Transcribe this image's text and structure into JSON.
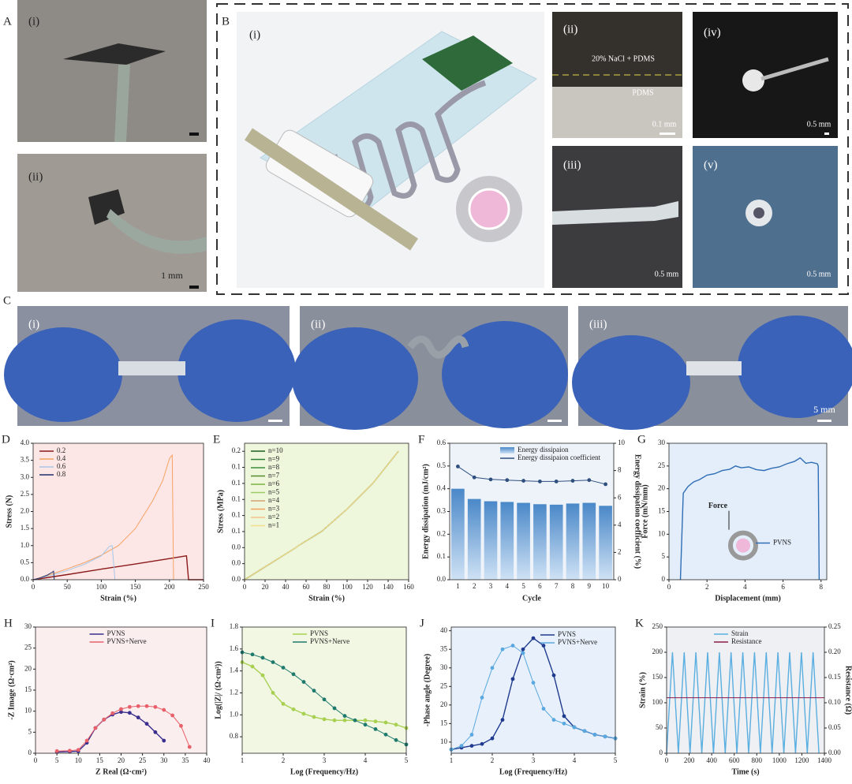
{
  "panels": {
    "A": "A",
    "B": "B",
    "C": "C"
  },
  "photos": {
    "A_i": "(i)",
    "A_ii": "(ii)",
    "A_scale": "1 mm",
    "B_i": "(i)",
    "B_ii": "(ii)",
    "B_ii_top": "20% NaCl + PDMS",
    "B_ii_bottom": "PDMS",
    "B_ii_scale": "0.1 mm",
    "B_iii": "(iii)",
    "B_iii_scale": "0.5 mm",
    "B_iv": "(iv)",
    "B_iv_scale": "0.5 mm",
    "B_v": "(v)",
    "B_v_scale": "0.5 mm",
    "C_i": "(i)",
    "C_ii": "(ii)",
    "C_iii": "(iii)",
    "C_scale": "5 mm"
  },
  "chart_data": [
    {
      "type": "line",
      "panel": "D",
      "xlabel": "Strain (%)",
      "ylabel": "Stress (N)",
      "background": "#fde6e6",
      "legend": "upper left",
      "xlim": [
        0,
        250
      ],
      "xticks": [
        0,
        50,
        100,
        150,
        200,
        250
      ],
      "ylim": [
        0,
        4
      ],
      "yticks": [
        {
          "value": 0,
          "label": "0.0"
        },
        0.5,
        {
          "value": 1,
          "label": "1.0"
        },
        1.5,
        {
          "value": 2,
          "label": "2.0"
        },
        2.5,
        {
          "value": 3,
          "label": "3.0"
        },
        3.5,
        {
          "value": 4,
          "label": "4.0"
        }
      ],
      "series": [
        {
          "name": "0.2",
          "color": "#8b1a1a",
          "x": [
            0,
            50,
            100,
            150,
            200,
            225,
            228,
            250
          ],
          "values": [
            0,
            0.15,
            0.31,
            0.46,
            0.62,
            0.7,
            0,
            0
          ]
        },
        {
          "name": "0.4",
          "color": "#f4a261",
          "x": [
            0,
            25,
            50,
            75,
            100,
            125,
            150,
            175,
            190,
            200,
            204,
            206
          ],
          "values": [
            0,
            0.15,
            0.32,
            0.5,
            0.72,
            1.0,
            1.5,
            2.3,
            2.9,
            3.55,
            3.65,
            0
          ]
        },
        {
          "name": "0.6",
          "color": "#a7c7e7",
          "x": [
            0,
            25,
            50,
            75,
            100,
            112,
            116,
            120
          ],
          "values": [
            0,
            0.12,
            0.27,
            0.45,
            0.7,
            0.98,
            1.0,
            0
          ]
        },
        {
          "name": "0.8",
          "color": "#1f2f6b",
          "x": [
            0,
            10,
            20,
            28,
            30,
            31
          ],
          "values": [
            0,
            0.05,
            0.13,
            0.22,
            0.25,
            0
          ]
        }
      ]
    },
    {
      "type": "line",
      "panel": "E",
      "xlabel": "Strain (%)",
      "ylabel": "Stress (MPa)",
      "background": "#eef6dc",
      "legend": "upper left",
      "xlim": [
        0,
        160
      ],
      "xticks": [
        0,
        20,
        40,
        60,
        80,
        100,
        120,
        140,
        160
      ],
      "ylim": [
        0,
        0.17
      ],
      "yticks": [
        {
          "value": 0,
          "label": "0.0"
        },
        {
          "value": 0.02,
          "label": "0.0"
        },
        {
          "value": 0.04,
          "label": "0.0"
        },
        {
          "value": 0.06,
          "label": "0.1"
        },
        {
          "value": 0.08,
          "label": "0.1"
        },
        {
          "value": 0.1,
          "label": "0.1"
        },
        {
          "value": 0.12,
          "label": "0.1"
        },
        {
          "value": 0.14,
          "label": "0.1"
        },
        {
          "value": 0.16,
          "label": "0.2"
        }
      ],
      "x": [
        0,
        25,
        50,
        52,
        75,
        100,
        125,
        150
      ],
      "series": [
        {
          "name": "n=10",
          "color": "#1b5e20",
          "values": [
            0,
            0.02,
            0.04,
            0.042,
            0.06,
            0.088,
            0.12,
            0.16
          ]
        },
        {
          "name": "n=9",
          "color": "#2e7d32",
          "values": [
            0,
            0.02,
            0.04,
            0.042,
            0.06,
            0.088,
            0.12,
            0.16
          ]
        },
        {
          "name": "n=8",
          "color": "#388e3c",
          "values": [
            0,
            0.02,
            0.04,
            0.042,
            0.06,
            0.088,
            0.12,
            0.16
          ]
        },
        {
          "name": "n=7",
          "color": "#558b2f",
          "values": [
            0,
            0.02,
            0.04,
            0.042,
            0.06,
            0.088,
            0.12,
            0.16
          ]
        },
        {
          "name": "n=6",
          "color": "#7cb342",
          "values": [
            0,
            0.02,
            0.04,
            0.042,
            0.06,
            0.088,
            0.12,
            0.16
          ]
        },
        {
          "name": "n=5",
          "color": "#9ccc65",
          "values": [
            0,
            0.02,
            0.04,
            0.042,
            0.06,
            0.088,
            0.12,
            0.16
          ]
        },
        {
          "name": "n=4",
          "color": "#d4a373",
          "values": [
            0,
            0.02,
            0.04,
            0.042,
            0.06,
            0.088,
            0.12,
            0.16
          ]
        },
        {
          "name": "n=3",
          "color": "#f4a261",
          "values": [
            0,
            0.02,
            0.04,
            0.042,
            0.06,
            0.088,
            0.12,
            0.16
          ]
        },
        {
          "name": "n=2",
          "color": "#f6c28b",
          "values": [
            0,
            0.02,
            0.04,
            0.042,
            0.06,
            0.088,
            0.12,
            0.16
          ]
        },
        {
          "name": "n=1",
          "color": "#f3e08a",
          "values": [
            0,
            0.02,
            0.04,
            0.042,
            0.06,
            0.088,
            0.12,
            0.16
          ]
        }
      ]
    },
    {
      "type": "bar",
      "panel": "F",
      "xlabel": "Cycle",
      "ylabel": "Energy dissipation (mJ/cm²)",
      "y2label": "Energy dissipation coefficient (%)",
      "background": "#eef3fa",
      "legend": "upper center",
      "markers": true,
      "categories": [
        "1",
        "2",
        "3",
        "4",
        "5",
        "6",
        "7",
        "8",
        "9",
        "10"
      ],
      "ylim": [
        0,
        0.6
      ],
      "yticks": [
        {
          "value": 0,
          "label": "0.0"
        },
        0.1,
        0.2,
        0.3,
        0.4,
        0.5,
        0.6
      ],
      "y2lim": [
        0,
        10
      ],
      "y2ticks": [
        0,
        2,
        4,
        6,
        8,
        10
      ],
      "series": [
        {
          "name": "Energy dissipaion",
          "color": "#5b9bd5",
          "values": [
            0.4,
            0.355,
            0.345,
            0.342,
            0.338,
            0.332,
            0.33,
            0.335,
            0.338,
            0.325
          ]
        },
        {
          "name": "Energy dissipaion coefficient",
          "color": "#2f4f7f",
          "type": "line",
          "axis": "y2",
          "values": [
            8.3,
            7.5,
            7.35,
            7.3,
            7.25,
            7.2,
            7.2,
            7.25,
            7.3,
            7.0
          ]
        }
      ]
    },
    {
      "type": "line",
      "panel": "G",
      "xlabel": "Displacement (mm)",
      "ylabel": "Force (mN/mm)",
      "background": "#e3eefa",
      "legend": "center right",
      "annotation": "Force",
      "xlim": [
        0,
        8.3
      ],
      "xticks": [
        0,
        2,
        4,
        6,
        8
      ],
      "ylim": [
        0,
        30
      ],
      "yticks": [
        0,
        5,
        10,
        15,
        20,
        25,
        30
      ],
      "series": [
        {
          "name": "PVNS",
          "color": "#2f6db5",
          "x": [
            0.6,
            0.75,
            1,
            1.3,
            1.6,
            2,
            2.4,
            2.8,
            3.2,
            3.5,
            3.8,
            4.2,
            4.6,
            5,
            5.4,
            5.8,
            6.2,
            6.6,
            6.9,
            7.2,
            7.5,
            7.8,
            7.85,
            7.9
          ],
          "values": [
            0,
            19,
            20.5,
            21.5,
            22,
            23,
            23.3,
            24,
            24.3,
            25,
            24.6,
            24.8,
            24.2,
            24,
            24.5,
            24.8,
            25.5,
            26,
            26.8,
            25.6,
            25.8,
            25.5,
            25,
            0
          ]
        }
      ]
    },
    {
      "type": "line",
      "panel": "H",
      "xlabel": "Z Real (Ω·cm²)",
      "ylabel": "-Z Image (Ω·cm²)",
      "background": "#fbeeee",
      "legend": "upper center",
      "markers": true,
      "xlim": [
        0,
        40
      ],
      "xticks": [
        0,
        5,
        10,
        15,
        20,
        25,
        30,
        35,
        40
      ],
      "ylim": [
        0,
        30
      ],
      "yticks": [
        0,
        5,
        10,
        15,
        20,
        25,
        30
      ],
      "series": [
        {
          "name": "PVNS",
          "color": "#3a2f8f",
          "x": [
            5,
            8,
            10,
            12,
            14,
            16,
            18,
            20,
            22,
            24,
            26,
            28,
            30
          ],
          "values": [
            0.3,
            0.4,
            0.5,
            2.5,
            6,
            8,
            9.2,
            9.8,
            9.6,
            8.5,
            7,
            5,
            3
          ]
        },
        {
          "name": "PVNS+Nerve",
          "color": "#e8606a",
          "x": [
            5,
            8,
            10,
            12,
            14,
            16,
            18,
            20,
            22,
            24,
            26,
            28,
            30,
            32,
            34,
            36
          ],
          "values": [
            0.5,
            0.6,
            0.8,
            3,
            6,
            8,
            9.5,
            10.5,
            11,
            11.2,
            11.2,
            11,
            10.3,
            9,
            6.5,
            1.5
          ]
        }
      ]
    },
    {
      "type": "line",
      "panel": "I",
      "xlabel": "Log (Frequency/Hz)",
      "ylabel": "Log(|Z|/ (Ω·cm²))",
      "background": "#f1f7e2",
      "legend": "upper center",
      "markers": true,
      "xlim": [
        1,
        5
      ],
      "xticks": [
        1,
        2,
        3,
        4,
        5
      ],
      "ylim": [
        0.65,
        1.8
      ],
      "yticks": [
        0.8,
        {
          "value": 1,
          "label": "1.0"
        },
        1.2,
        1.4,
        1.6,
        1.8
      ],
      "x": [
        1,
        1.25,
        1.5,
        1.75,
        2,
        2.25,
        2.5,
        2.75,
        3,
        3.25,
        3.5,
        3.75,
        4,
        4.25,
        4.5,
        4.75,
        5
      ],
      "series": [
        {
          "name": "PVNS",
          "color": "#a8d050",
          "values": [
            1.48,
            1.44,
            1.36,
            1.2,
            1.1,
            1.05,
            1.01,
            0.98,
            0.96,
            0.95,
            0.95,
            0.95,
            0.95,
            0.94,
            0.93,
            0.91,
            0.88
          ]
        },
        {
          "name": "PVNS+Nerve",
          "color": "#1f7a6e",
          "values": [
            1.57,
            1.55,
            1.52,
            1.48,
            1.43,
            1.37,
            1.3,
            1.22,
            1.14,
            1.06,
            0.99,
            0.95,
            0.91,
            0.87,
            0.82,
            0.77,
            0.73
          ]
        }
      ]
    },
    {
      "type": "line",
      "panel": "J",
      "xlabel": "Log (Frequency/Hz)",
      "ylabel": "-Phase angle (Degree)",
      "background": "#e8f1fb",
      "legend": "upper right",
      "markers": true,
      "xlim": [
        1,
        5
      ],
      "xticks": [
        1,
        2,
        3,
        4,
        5
      ],
      "ylim": [
        7,
        41
      ],
      "yticks": [
        10,
        15,
        20,
        25,
        30,
        35,
        40
      ],
      "x": [
        1,
        1.25,
        1.5,
        1.75,
        2,
        2.25,
        2.5,
        2.75,
        3,
        3.25,
        3.5,
        3.75,
        4,
        4.25,
        4.5,
        4.75,
        5
      ],
      "series": [
        {
          "name": "PVNS",
          "color": "#1f3a8f",
          "values": [
            8,
            8.5,
            9,
            9.5,
            11,
            16,
            27,
            35,
            38,
            36,
            28,
            17,
            14,
            13,
            12,
            11.5,
            11
          ]
        },
        {
          "name": "PVNS+Nerve",
          "color": "#5aa8e0",
          "values": [
            8,
            9,
            12,
            22,
            30,
            35,
            36,
            34,
            26,
            19,
            16,
            15,
            14,
            13,
            12,
            11.5,
            11
          ]
        }
      ]
    },
    {
      "type": "line",
      "panel": "K",
      "xlabel": "Time (s)",
      "ylabel": "Strain (%)",
      "y2label": "Resistance (Ω)",
      "background": "#eef0f4",
      "legend": "upper center",
      "xlim": [
        0,
        1400
      ],
      "xticks": [
        0,
        200,
        400,
        600,
        800,
        1000,
        1200,
        1400
      ],
      "ylim": [
        0,
        250
      ],
      "yticks": [
        0,
        50,
        100,
        150,
        200,
        250
      ],
      "y2lim": [
        0,
        0.25
      ],
      "y2ticks": [
        {
          "value": 0,
          "label": "0.00"
        },
        0.05,
        {
          "value": 0.1,
          "label": "0.10"
        },
        0.15,
        {
          "value": 0.2,
          "label": "0.20"
        },
        0.25
      ],
      "series": [
        {
          "name": "Strain",
          "color": "#5aaee0",
          "x": [
            0,
            52,
            104,
            156,
            208,
            260,
            312,
            364,
            416,
            468,
            520,
            572,
            624,
            676,
            728,
            780,
            832,
            884,
            936,
            988,
            1040,
            1092,
            1144,
            1196,
            1248,
            1300,
            1352
          ],
          "values": [
            0,
            200,
            0,
            200,
            0,
            200,
            0,
            200,
            0,
            200,
            0,
            200,
            0,
            200,
            0,
            200,
            0,
            200,
            0,
            200,
            0,
            200,
            0,
            200,
            0,
            200,
            0
          ]
        },
        {
          "name": "Resistance",
          "color": "#8b1a4a",
          "axis": "y2",
          "x": [
            0,
            1400
          ],
          "values": [
            0.11,
            0.11
          ]
        }
      ]
    }
  ]
}
